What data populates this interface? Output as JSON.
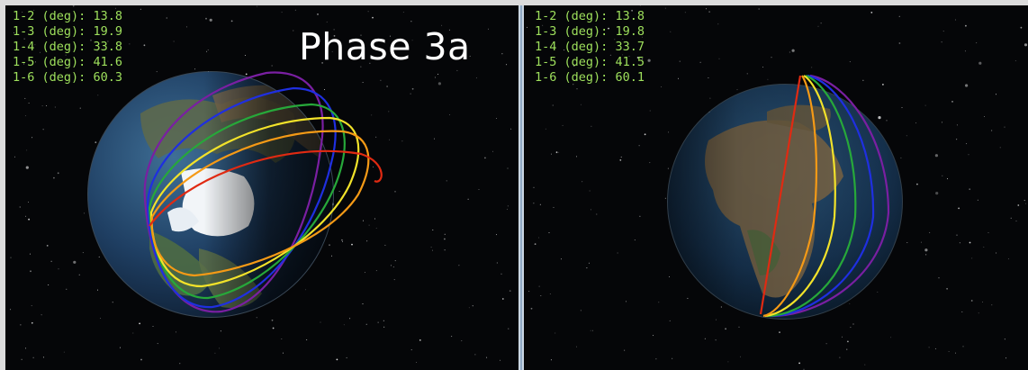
{
  "colors": {
    "readout_text": "#9ee05c",
    "space_background": "#050608",
    "divider": "#c9d6e3",
    "orbit_colors": [
      "#7a1fa2",
      "#1f2fe0",
      "#27a83a",
      "#f2e22a",
      "#f59a16",
      "#e02a12"
    ]
  },
  "left_view": {
    "title": "Phase 3a",
    "readouts": [
      {
        "pair": "1-2",
        "unit": "(deg):",
        "value": "13.8"
      },
      {
        "pair": "1-3",
        "unit": "(deg):",
        "value": "19.9"
      },
      {
        "pair": "1-4",
        "unit": "(deg):",
        "value": "33.8"
      },
      {
        "pair": "1-5",
        "unit": "(deg):",
        "value": "41.6"
      },
      {
        "pair": "1-6",
        "unit": "(deg):",
        "value": "60.3"
      }
    ],
    "globe_icon": "earth-globe-arctic-view-icon"
  },
  "right_view": {
    "readouts": [
      {
        "pair": "1-2",
        "unit": "(deg):",
        "value": "13.8"
      },
      {
        "pair": "1-3",
        "unit": "(deg):",
        "value": "19.8"
      },
      {
        "pair": "1-4",
        "unit": "(deg):",
        "value": "33.7"
      },
      {
        "pair": "1-5",
        "unit": "(deg):",
        "value": "41.5"
      },
      {
        "pair": "1-6",
        "unit": "(deg):",
        "value": "60.1"
      }
    ],
    "globe_icon": "earth-globe-africa-view-icon"
  }
}
